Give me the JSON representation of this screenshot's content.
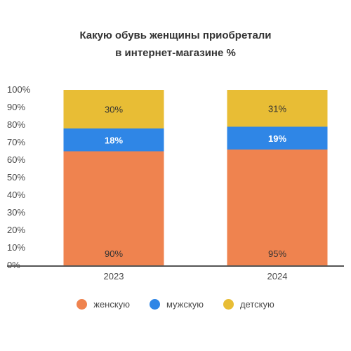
{
  "chart_data": {
    "type": "bar",
    "stacked": true,
    "title_lines": [
      "Какую обувь женщины приобретали",
      "в интернет-магазине  %"
    ],
    "categories": [
      "2023",
      "2024"
    ],
    "y_ticks": [
      "0%",
      "10%",
      "20%",
      "30%",
      "40%",
      "50%",
      "60%",
      "70%",
      "80%",
      "90%",
      "100%"
    ],
    "ylim": [
      0,
      100
    ],
    "grid": false,
    "legend_position": "bottom",
    "series": [
      {
        "name": "женскую",
        "color": "#EF834F",
        "segment_heights": [
          65,
          66
        ],
        "labels": [
          "90%",
          "95%"
        ],
        "label_color": "#333333"
      },
      {
        "name": "мужскую",
        "color": "#2F86E6",
        "segment_heights": [
          13,
          13
        ],
        "labels": [
          "18%",
          "19%"
        ],
        "label_color": "#ffffff"
      },
      {
        "name": "детскую",
        "color": "#E8BD35",
        "segment_heights": [
          22,
          21
        ],
        "labels": [
          "30%",
          "31%"
        ],
        "label_color": "#333333"
      }
    ]
  }
}
